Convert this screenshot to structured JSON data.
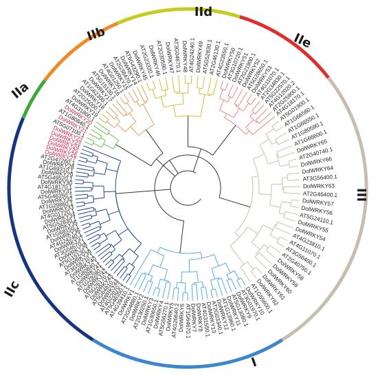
{
  "groups": [
    {
      "id": "I",
      "label": "I",
      "color": "#3b86cc",
      "branch": "#5aa8e6",
      "leaves": [
        "DolWRKY10",
        "AT3G01970.1",
        "DolWRKY9",
        "AT5G13080.1",
        "DolWRKY11",
        "AT1G13960.1",
        "DolWRKY12",
        "AT2G03340.1",
        "DolWRKY13",
        "AT4G31550.1",
        "DolWRKY8",
        "DolWRKY7",
        "AT1G64670.1",
        "DolWRKY6",
        "AT4G26640.2",
        "DolWRKY5",
        "AT5G56270.1",
        "DolWRKY4",
        "AT1G30650.1",
        "DolWRKY3",
        "AT2G30250.1",
        "DolWRKY2",
        "AT2G04880.1",
        "DolWRKY1",
        "AT4G39410.1"
      ]
    },
    {
      "id": "IIc",
      "label": "IIc",
      "color": "#17357e",
      "branch": "#23468f",
      "leaves": [
        "AT5G46350.1",
        "AT4G22070.1",
        "DolWRKY44",
        "AT5G64810.1",
        "DolWRKY43",
        "AT5G26170.1",
        "DolWRKY42",
        "AT1G29280.1",
        "DolWRKY41",
        "AT1G80840.1",
        "DolWRKY40",
        "AT3G58710.1",
        "DolWRKY39",
        "AT5G15130.1",
        "DolWRKY38",
        "AT3G04670.1",
        "DolWRKY37",
        "AT4G24240.1",
        "DolWRKY36",
        "AT1G68150.1",
        "DolWRKY35",
        "AT5G52830.1",
        "DolWRKY34",
        "AT4G01720.1",
        "DolWRKY33",
        "AT1G29860.1",
        "DolWRKY32",
        "AT5G46350.1",
        "DolWRKY31",
        "AT4G18170.1",
        "DolWRKY30",
        "AT5G49520.1",
        "DolWRKY29",
        "AT1G69310.1",
        "DolWRKY28",
        "AT2G47260.1",
        "DolWRKY27",
        "DolWRKY26",
        "DolWRKY25",
        "DolWRKY24",
        "DolWRKY23"
      ]
    },
    {
      "id": "IIa",
      "label": "IIa",
      "color": "#3aa83a",
      "branch": "#6bbf4a",
      "leaves": [
        "DolWRKY22",
        "AT5G07100.1",
        "DolWRKY21",
        "AT1G80840.1",
        "DolWRKY20",
        "AT4G31800.1"
      ]
    },
    {
      "id": "IIb",
      "label": "IIb",
      "color": "#f08a28",
      "branch": "#d9a25a",
      "leaves": [
        "DolWRKY19",
        "AT2G25000.1",
        "DolWRKY18",
        "AT1G62300.1",
        "DolWRKY17",
        "AT5G15130.1",
        "DolWRKY16",
        "AT4G01250.1",
        "DolWRKY15",
        "AT2G38470.1",
        "DolWRKY14",
        "AT5G43290.1"
      ]
    },
    {
      "id": "IId",
      "label": "IId",
      "color": "#c6cc1f",
      "branch": "#c4c43c",
      "leaves": [
        "DolWRKY45",
        "AT2G23320.1",
        "DolWRKY46",
        "AT2G30590.1",
        "DolWRKY47",
        "AT3G04670.1",
        "DolWRKY48",
        "AT4G24240.1",
        "DolWRKY49",
        "AT5G52830.1",
        "AT2G46130.1",
        "AT4G23550.1"
      ]
    },
    {
      "id": "IIe",
      "label": "IIe",
      "color": "#de2f2f",
      "branch": "#e58a7e",
      "leaves": [
        "DolWRKY50",
        "AT3G10720.1",
        "DolWRKY51",
        "AT2G21900.1",
        "DolWRKY52",
        "AT5G28650.1",
        "DolWRKY53",
        "AT4G11070.1",
        "AT2G34830.1",
        "AT5G22570.1",
        "AT4G12020.2",
        "AT2G25900.1",
        "AT4G18170.1"
      ]
    },
    {
      "id": "III",
      "label": "III",
      "color": "#c8beb0",
      "branch": "#cdbfae",
      "leaves": [
        "AT5G01900.1",
        "AT1G66560.1",
        "AT1G66550.1",
        "AT1G80590.1",
        "AT1G66600.1",
        "DolWRKY65",
        "AT2G40740.1",
        "DolWRKY66",
        "DolWRKY64",
        "AT3G56400.1",
        "DolWRKY63",
        "AT2G46400.1",
        "DolWRKY57",
        "DolWRKY56",
        "AT5G24110.1",
        "DolWRKY55",
        "DolWRKY54",
        "AT4G23810.1",
        "AT4G11070.1",
        "AT3G56400.1",
        "AT2G40750.1",
        "DolWRKY58",
        "DolWRKY59",
        "DolWRKY60",
        "DolWRKY61",
        "DolWRKY62",
        "AT1G55600.1"
      ]
    }
  ]
}
